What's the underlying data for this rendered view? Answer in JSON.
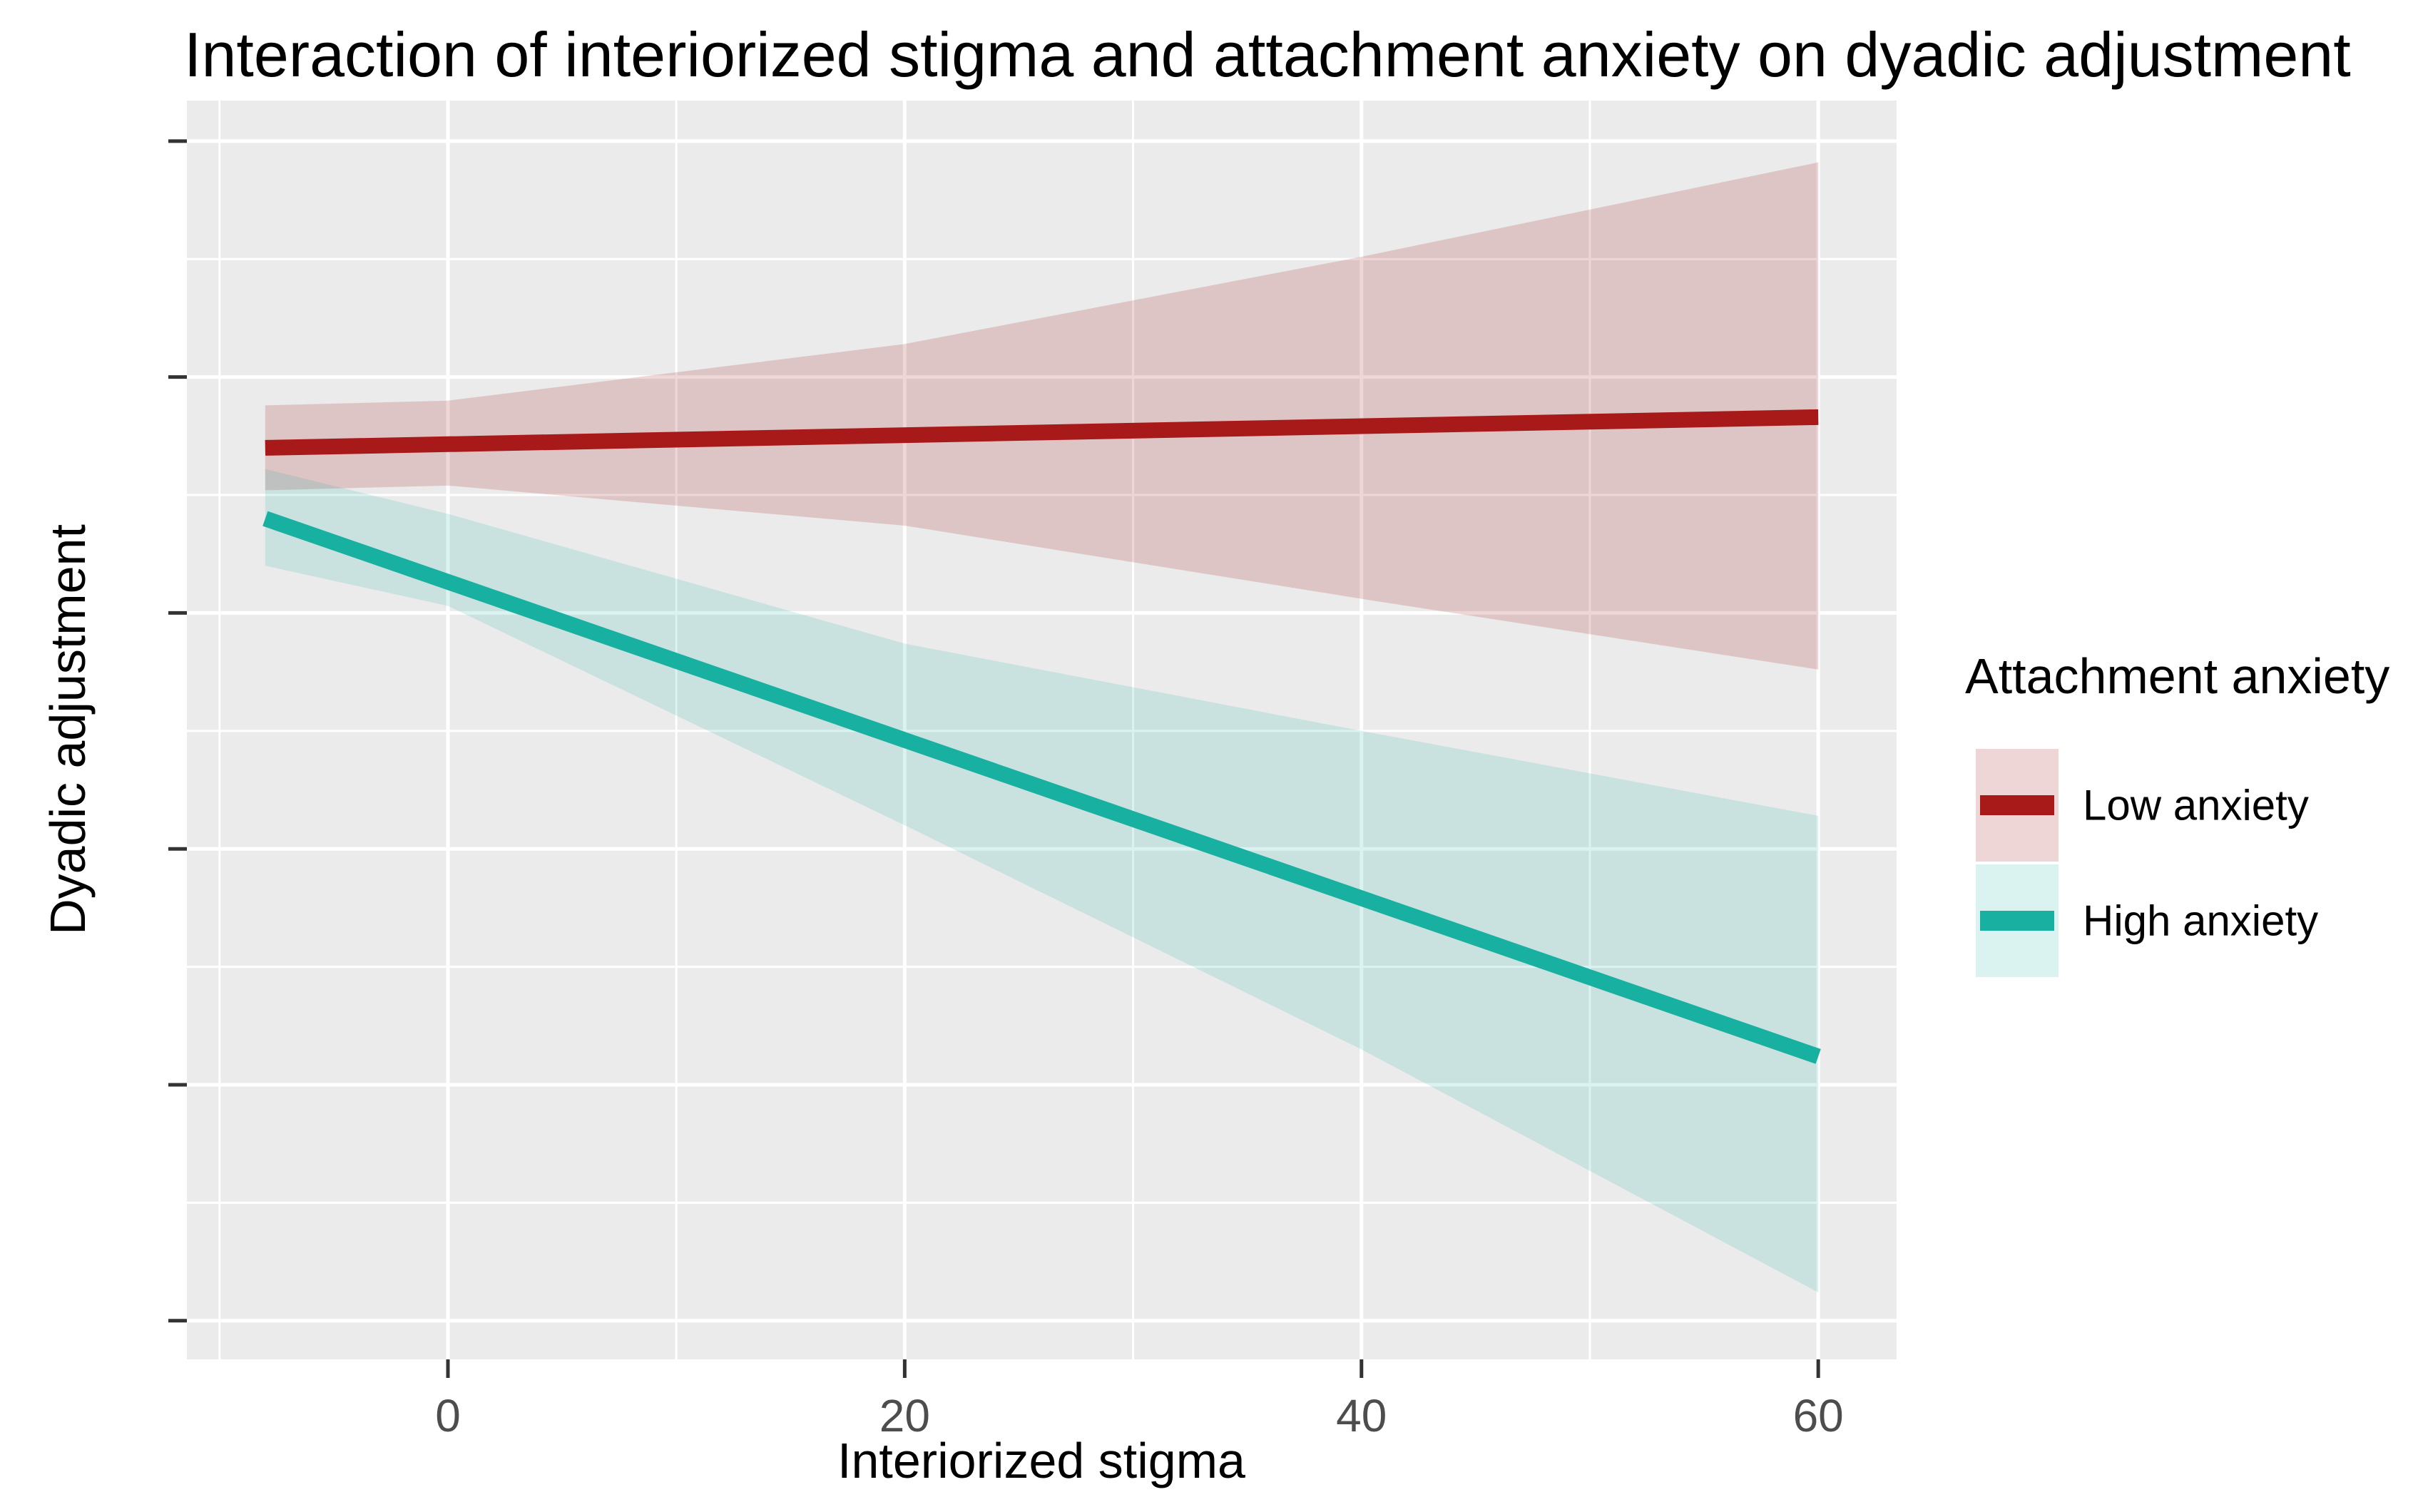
{
  "chart": {
    "title": "Interaction of interiorized stigma and attachment anxiety on dyadic adjustment",
    "xlabel": "Interiorized stigma",
    "ylabel": "Dyadic adjustment"
  },
  "legend": {
    "title": "Attachment anxiety",
    "items": [
      {
        "label": "Low anxiety"
      },
      {
        "label": "High anxiety"
      }
    ]
  },
  "chart_data": {
    "type": "line",
    "title": "Interaction of interiorized stigma and attachment anxiety on dyadic adjustment",
    "xlabel": "Interiorized stigma",
    "ylabel": "Dyadic adjustment",
    "x_domain": [
      -11.43,
      63.43
    ],
    "y_domain": [
      108.36,
      161.72
    ],
    "x_major_ticks": [
      0,
      20,
      40,
      60
    ],
    "x_minor_ticks": [
      -10,
      10,
      30,
      50
    ],
    "y_major_ticks": [
      110,
      120,
      130,
      140,
      150,
      160
    ],
    "y_minor_ticks": [
      115,
      125,
      135,
      145,
      155
    ],
    "panel_bg": "#EBEBEB",
    "grid_color": "#FFFFFF",
    "tick_mark_color": "#333333",
    "legend_position": "right",
    "series": [
      {
        "name": "Low anxiety",
        "line_color": "#A81A1A",
        "ribbon_color": "rgba(168,26,26,0.18)",
        "line": {
          "x": [
            -8,
            60
          ],
          "y": [
            147.0,
            148.3
          ]
        },
        "ribbon": {
          "x": [
            -8,
            0,
            20,
            40,
            60
          ],
          "upper": [
            148.8,
            149.0,
            151.4,
            155.1,
            159.1
          ],
          "lower": [
            145.2,
            145.4,
            143.7,
            140.6,
            137.6
          ]
        }
      },
      {
        "name": "High anxiety",
        "line_color": "#18B0A0",
        "ribbon_color": "rgba(24,176,160,0.16)",
        "line": {
          "x": [
            -8,
            60
          ],
          "y": [
            144.0,
            121.2
          ]
        },
        "ribbon": {
          "x": [
            -8,
            0,
            20,
            40,
            60
          ],
          "upper": [
            146.1,
            144.2,
            138.7,
            135.0,
            131.4
          ],
          "lower": [
            142.0,
            140.3,
            131.0,
            121.5,
            111.2
          ]
        }
      }
    ]
  }
}
